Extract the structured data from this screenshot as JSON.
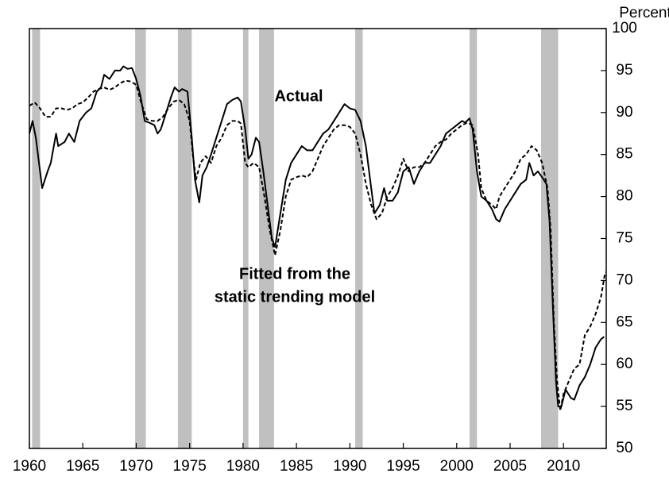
{
  "chart_data": {
    "type": "line",
    "y_label": "Percent",
    "annotations": [
      "Actual",
      "Fitted from the",
      "static trending model"
    ],
    "xlim": [
      1960,
      2014
    ],
    "xticks": [
      1960,
      1965,
      1970,
      1975,
      1980,
      1985,
      1990,
      1995,
      2000,
      2005,
      2010
    ],
    "ylim": [
      50,
      100
    ],
    "yticks": [
      50,
      55,
      60,
      65,
      70,
      75,
      80,
      85,
      90,
      95,
      100
    ],
    "recession_color": "#c0c0c0",
    "recessions": [
      [
        1960.25,
        1961.0
      ],
      [
        1969.9,
        1970.9
      ],
      [
        1973.9,
        1975.2
      ],
      [
        1980.0,
        1980.5
      ],
      [
        1981.5,
        1982.9
      ],
      [
        1990.5,
        1991.2
      ],
      [
        2001.2,
        2001.9
      ],
      [
        2007.9,
        2009.5
      ]
    ],
    "series": [
      {
        "color": "#000000",
        "dash": false,
        "x": [
          1960,
          1960.3,
          1960.6,
          1961,
          1961.2,
          1961.7,
          1962,
          1962.5,
          1962.7,
          1963.3,
          1963.7,
          1964.2,
          1964.7,
          1965.3,
          1965.8,
          1966.3,
          1966.7,
          1967,
          1967.5,
          1968,
          1968.5,
          1968.8,
          1969.2,
          1969.6,
          1970,
          1970.4,
          1970.8,
          1971.2,
          1971.7,
          1972,
          1972.3,
          1972.8,
          1973.3,
          1973.6,
          1974,
          1974.3,
          1974.8,
          1975.2,
          1975.5,
          1975.9,
          1976.2,
          1976.6,
          1977,
          1977.5,
          1978,
          1978.5,
          1979,
          1979.5,
          1979.8,
          1980.2,
          1980.5,
          1980.8,
          1981.2,
          1981.5,
          1981.9,
          1982.3,
          1982.7,
          1983,
          1983.5,
          1984,
          1984.5,
          1985,
          1985.5,
          1986,
          1986.5,
          1987,
          1987.5,
          1988,
          1988.5,
          1989,
          1989.5,
          1990,
          1990.5,
          1991,
          1991.5,
          1992,
          1992.3,
          1992.8,
          1993.2,
          1993.5,
          1994,
          1994.5,
          1995,
          1995.5,
          1996,
          1996.5,
          1997,
          1997.5,
          1998,
          1998.5,
          1999,
          1999.5,
          2000,
          2000.5,
          2000.8,
          2001.2,
          2001.5,
          2001.9,
          2002.3,
          2002.8,
          2003.3,
          2003.7,
          2004,
          2004.5,
          2005,
          2005.5,
          2006,
          2006.5,
          2006.8,
          2007.2,
          2007.6,
          2008,
          2008.4,
          2008.7,
          2009,
          2009.3,
          2009.5,
          2009.8,
          2010.2,
          2010.7,
          2011,
          2011.5,
          2012,
          2012.5,
          2013,
          2013.5,
          2013.8
        ],
        "values": [
          87.5,
          89,
          87,
          83,
          81,
          83,
          84,
          87.5,
          86,
          86.5,
          87.5,
          86.5,
          89,
          90,
          90.5,
          92.5,
          93,
          94.5,
          94,
          95,
          95,
          95.5,
          95.2,
          95.3,
          94,
          92,
          89,
          88.8,
          88.5,
          87.5,
          88,
          90,
          92,
          93,
          92.5,
          92.8,
          92.5,
          87,
          82,
          79.3,
          82.5,
          83.5,
          85,
          87,
          89,
          91,
          91.5,
          91.8,
          91.3,
          88,
          84.5,
          85,
          87,
          86.5,
          83,
          79,
          75,
          74,
          78,
          82,
          84,
          85,
          86,
          85.5,
          85.5,
          86.5,
          87.5,
          88,
          89,
          90,
          91,
          90.5,
          90.3,
          89,
          86,
          81,
          78,
          79,
          81,
          79.5,
          79.5,
          80.5,
          83,
          83.5,
          81.5,
          83,
          84,
          84,
          85,
          86,
          87.5,
          88,
          88.5,
          89,
          88.8,
          89.3,
          88,
          83,
          80,
          79.5,
          78.5,
          77.3,
          77,
          78.5,
          79.5,
          80.5,
          81.5,
          82,
          84,
          82.5,
          83,
          82.3,
          81.5,
          77,
          67,
          58,
          55,
          55,
          57,
          56,
          55.8,
          57.5,
          58.5,
          60,
          62,
          63,
          63.3
        ]
      },
      {
        "color": "#000000",
        "dash": true,
        "x": [
          1960,
          1960.5,
          1961,
          1961.5,
          1962,
          1962.5,
          1963,
          1963.5,
          1964,
          1964.5,
          1965,
          1965.5,
          1966,
          1966.5,
          1967,
          1967.5,
          1968,
          1968.5,
          1969,
          1969.5,
          1970,
          1970.5,
          1971,
          1971.5,
          1972,
          1972.5,
          1973,
          1973.5,
          1974,
          1974.5,
          1975,
          1975.3,
          1975.6,
          1976,
          1976.5,
          1977,
          1977.5,
          1978,
          1978.5,
          1979,
          1979.5,
          1979.8,
          1980.2,
          1980.5,
          1981,
          1981.5,
          1982,
          1982.5,
          1983,
          1983.5,
          1984,
          1984.5,
          1985,
          1985.5,
          1986,
          1986.5,
          1987,
          1987.5,
          1988,
          1988.5,
          1989,
          1989.5,
          1990,
          1990.5,
          1991,
          1991.5,
          1992,
          1992.5,
          1993,
          1993.5,
          1994,
          1994.5,
          1995,
          1995.5,
          1996,
          1996.5,
          1997,
          1997.5,
          1998,
          1998.5,
          1999,
          1999.5,
          2000,
          2000.5,
          2001,
          2001.5,
          2002,
          2002.3,
          2002.8,
          2003.3,
          2003.7,
          2004,
          2004.5,
          2005,
          2005.5,
          2006,
          2006.5,
          2007,
          2007.5,
          2008,
          2008.5,
          2008.8,
          2009.1,
          2009.4,
          2009.7,
          2010,
          2010.5,
          2011,
          2011.5,
          2012,
          2012.5,
          2013,
          2013.5,
          2013.9
        ],
        "values": [
          90.8,
          91.2,
          90.5,
          89.5,
          89.5,
          90.5,
          90.5,
          90.3,
          90.5,
          91,
          91.2,
          91.8,
          92.5,
          92.8,
          93,
          92.7,
          93,
          93.5,
          93.8,
          93.7,
          93.3,
          91,
          89.2,
          89,
          89,
          89.5,
          90.5,
          91.3,
          91.5,
          91,
          89,
          85,
          82,
          84,
          84.8,
          84,
          86,
          87,
          88.5,
          89,
          89,
          88.7,
          84,
          83.5,
          84,
          83.5,
          80,
          76,
          73,
          76,
          80,
          82,
          82.3,
          82.5,
          82.3,
          83,
          84.5,
          86,
          87,
          88,
          88.5,
          88.5,
          88.3,
          87.5,
          85,
          81.5,
          79,
          77.3,
          78,
          80,
          81,
          82.5,
          84.5,
          83,
          83.5,
          83.5,
          84,
          85,
          86,
          86.5,
          86.8,
          87.5,
          88,
          88.5,
          88.8,
          88.5,
          85,
          81,
          79.5,
          79,
          78.5,
          80,
          81,
          82,
          83,
          84.5,
          85,
          86,
          85.5,
          84,
          81,
          76,
          65,
          58,
          54.5,
          56.5,
          58,
          59.5,
          60,
          63.5,
          64.5,
          66,
          68,
          71
        ]
      }
    ]
  }
}
